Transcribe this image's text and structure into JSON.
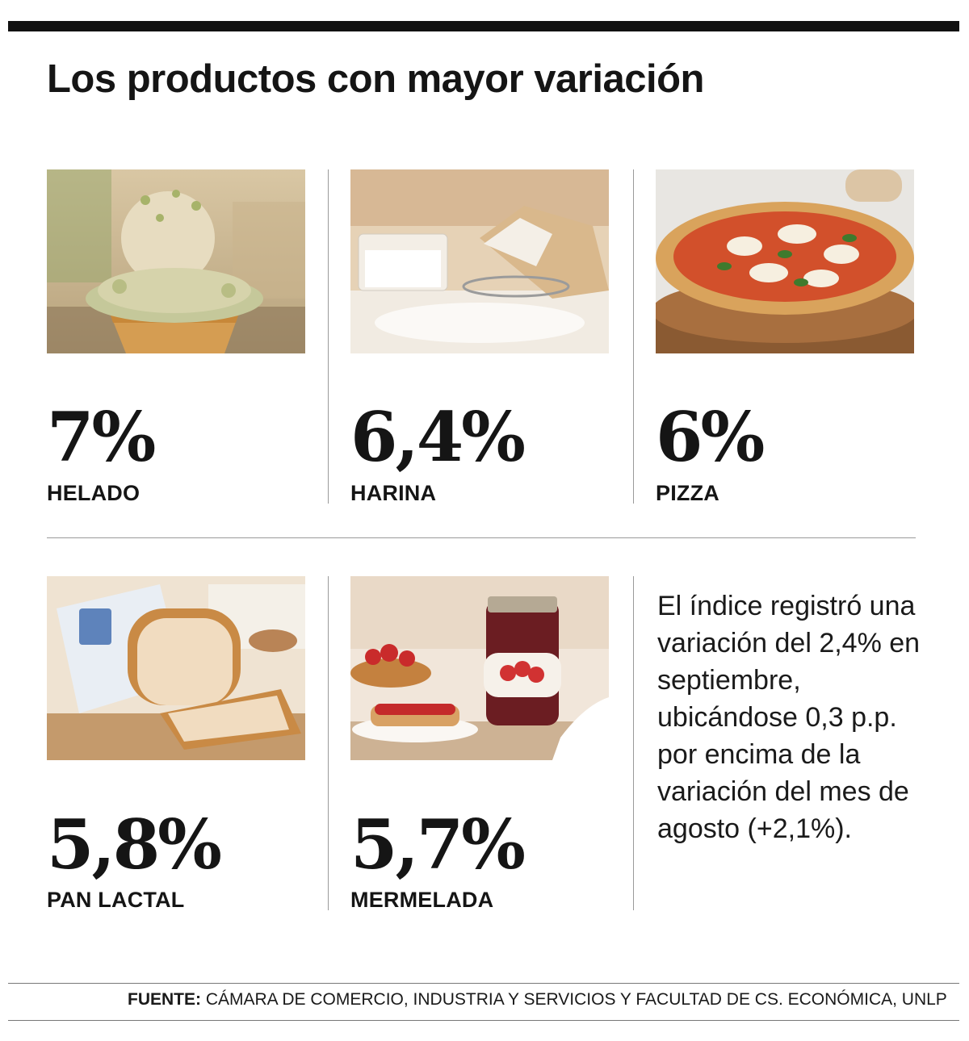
{
  "title": "Los productos con mayor variación",
  "products": [
    {
      "percent": "7%",
      "name": "HELADO",
      "icon": "ice-cream-image"
    },
    {
      "percent": "6,4%",
      "name": "HARINA",
      "icon": "flour-image"
    },
    {
      "percent": "6%",
      "name": "PIZZA",
      "icon": "pizza-image"
    },
    {
      "percent": "5,8%",
      "name": "PAN LACTAL",
      "icon": "bread-image"
    },
    {
      "percent": "5,7%",
      "name": "MERMELADA",
      "icon": "jam-image"
    }
  ],
  "note": "El índice registró una variación del 2,4% en septiembre, ubicándose 0,3 p.p. por encima de la variación del mes de agosto (+2,1%).",
  "source": {
    "label": "FUENTE:",
    "text": "CÁMARA DE COMERCIO, INDUSTRIA Y SERVICIOS Y FACULTAD DE CS. ECONÓMICA, UNLP"
  }
}
